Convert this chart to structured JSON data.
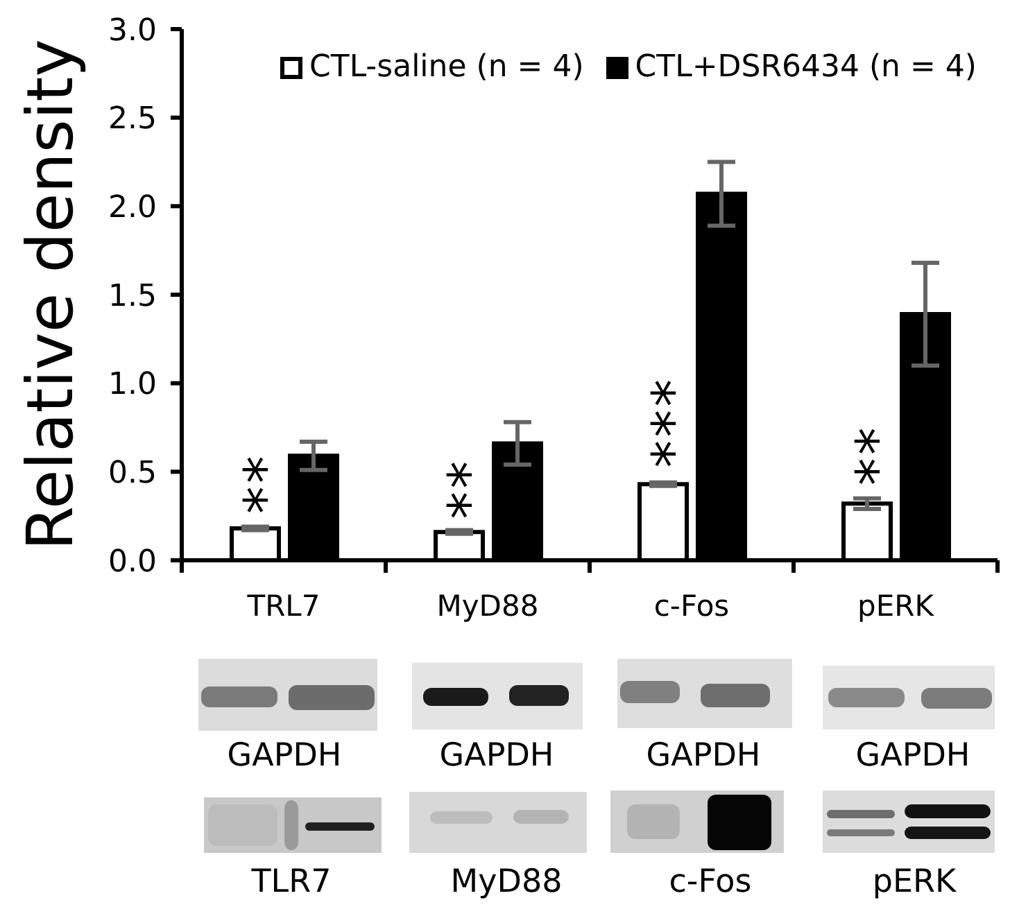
{
  "chart_data": {
    "type": "bar",
    "categories": [
      "TRL7",
      "MyD88",
      "c-Fos",
      "pERK"
    ],
    "series": [
      {
        "name": "CTL-saline (n = 4)",
        "color": "#ffffff",
        "values": [
          0.18,
          0.16,
          0.43,
          0.32
        ],
        "errors": [
          0.01,
          0.01,
          0.01,
          0.03
        ]
      },
      {
        "name": "CTL+DSR6434 (n = 4)",
        "color": "#000000",
        "values": [
          0.59,
          0.66,
          2.07,
          1.39
        ],
        "errors": [
          0.08,
          0.12,
          0.18,
          0.29
        ]
      }
    ],
    "ylabel": "Relative density",
    "ylim": [
      0,
      3
    ],
    "yticks": [
      {
        "value": 0,
        "label": "0.0"
      },
      0.5,
      {
        "value": 1,
        "label": "1.0"
      },
      1.5,
      {
        "value": 2,
        "label": "2.0"
      },
      2.5,
      {
        "value": 3,
        "label": "3.0"
      }
    ],
    "legend": "top right",
    "annotations": [
      {
        "text": "**",
        "x": "TRL7",
        "y": 0.34
      },
      {
        "text": "**",
        "x": "MyD88",
        "y": 0.31
      },
      {
        "text": "***",
        "x": "c-Fos",
        "y": 0.6
      },
      {
        "text": "**",
        "x": "pERK",
        "y": 0.5
      },
      "GAPDH",
      "GAPDH",
      "GAPDH",
      "GAPDH",
      "TLR7",
      "MyD88",
      "c-Fos",
      "pERK"
    ]
  }
}
